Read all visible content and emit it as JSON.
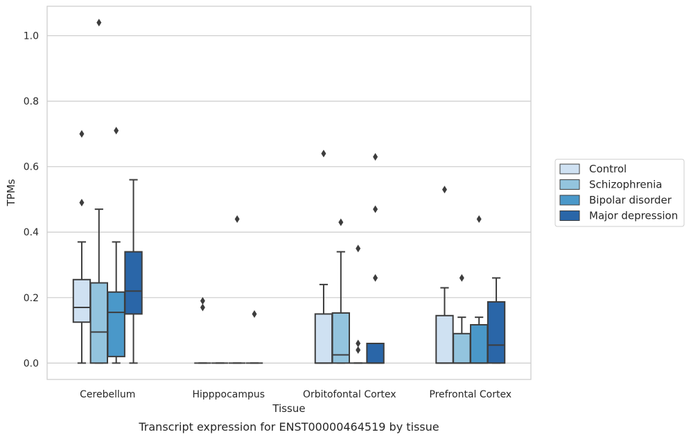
{
  "caption": "Transcript expression for ENST00000464519 by tissue",
  "chart_data": {
    "type": "box",
    "xlabel": "Tissue",
    "ylabel": "TPMs",
    "ylim": [
      -0.05,
      1.09
    ],
    "yticks": [
      "0.0",
      "0.2",
      "0.4",
      "0.6",
      "0.8",
      "1.0"
    ],
    "ytick_values": [
      0.0,
      0.2,
      0.4,
      0.6,
      0.8,
      1.0
    ],
    "grid": "horizontal",
    "legend_position": "right",
    "categories": [
      "Cerebellum",
      "Hipppocampus",
      "Orbitofontal Cortex",
      "Prefrontal Cortex"
    ],
    "series": [
      {
        "name": "Control",
        "color": "#cfe1f2",
        "boxes": [
          {
            "whislo": 0.0,
            "q1": 0.125,
            "med": 0.17,
            "q3": 0.255,
            "whishi": 0.37,
            "fliers": [
              0.49,
              0.7
            ]
          },
          {
            "whislo": 0.0,
            "q1": 0.0,
            "med": 0.0,
            "q3": 0.0,
            "whishi": 0.0,
            "fliers": [
              0.17,
              0.19
            ]
          },
          {
            "whislo": 0.0,
            "q1": 0.0,
            "med": 0.0,
            "q3": 0.15,
            "whishi": 0.24,
            "fliers": [
              0.64
            ]
          },
          {
            "whislo": 0.0,
            "q1": 0.0,
            "med": 0.0,
            "q3": 0.145,
            "whishi": 0.23,
            "fliers": [
              0.53
            ]
          }
        ]
      },
      {
        "name": "Schizophrenia",
        "color": "#93c4de",
        "boxes": [
          {
            "whislo": 0.0,
            "q1": 0.0,
            "med": 0.095,
            "q3": 0.245,
            "whishi": 0.47,
            "fliers": [
              1.04
            ]
          },
          {
            "whislo": 0.0,
            "q1": 0.0,
            "med": 0.0,
            "q3": 0.0,
            "whishi": 0.0,
            "fliers": []
          },
          {
            "whislo": 0.0,
            "q1": 0.0,
            "med": 0.025,
            "q3": 0.153,
            "whishi": 0.34,
            "fliers": [
              0.43
            ]
          },
          {
            "whislo": 0.0,
            "q1": 0.0,
            "med": 0.0,
            "q3": 0.09,
            "whishi": 0.14,
            "fliers": [
              0.26
            ]
          }
        ]
      },
      {
        "name": "Bipolar disorder",
        "color": "#4a98c9",
        "boxes": [
          {
            "whislo": 0.0,
            "q1": 0.02,
            "med": 0.155,
            "q3": 0.217,
            "whishi": 0.37,
            "fliers": [
              0.71
            ]
          },
          {
            "whislo": 0.0,
            "q1": 0.0,
            "med": 0.0,
            "q3": 0.0,
            "whishi": 0.0,
            "fliers": [
              0.44
            ]
          },
          {
            "whislo": 0.0,
            "q1": 0.0,
            "med": 0.0,
            "q3": 0.0,
            "whishi": 0.0,
            "fliers": [
              0.04,
              0.06,
              0.35
            ]
          },
          {
            "whislo": 0.0,
            "q1": 0.0,
            "med": 0.0,
            "q3": 0.117,
            "whishi": 0.14,
            "fliers": [
              0.44
            ]
          }
        ]
      },
      {
        "name": "Major depression",
        "color": "#2a66a8",
        "boxes": [
          {
            "whislo": 0.0,
            "q1": 0.15,
            "med": 0.22,
            "q3": 0.34,
            "whishi": 0.56,
            "fliers": []
          },
          {
            "whislo": 0.0,
            "q1": 0.0,
            "med": 0.0,
            "q3": 0.0,
            "whishi": 0.0,
            "fliers": [
              0.15
            ]
          },
          {
            "whislo": 0.0,
            "q1": 0.0,
            "med": 0.0,
            "q3": 0.06,
            "whishi": 0.06,
            "fliers": [
              0.26,
              0.47,
              0.63
            ]
          },
          {
            "whislo": 0.0,
            "q1": 0.0,
            "med": 0.055,
            "q3": 0.187,
            "whishi": 0.26,
            "fliers": []
          }
        ]
      }
    ]
  }
}
